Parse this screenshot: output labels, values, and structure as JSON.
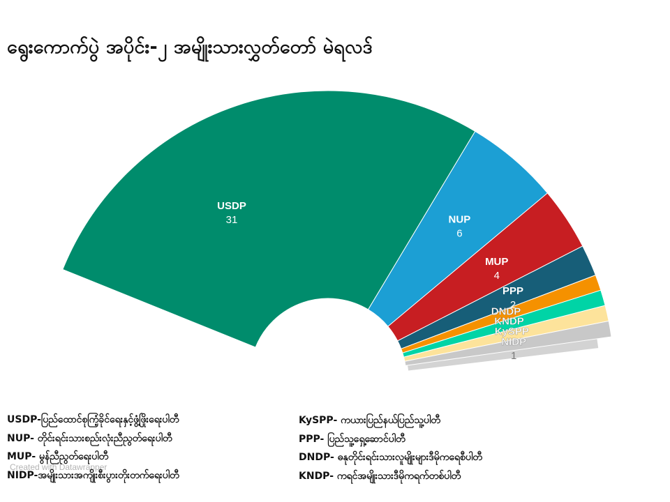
{
  "title": "ရွေးကောက်ပွဲ အပိုင်း-၂ အမျိုးသားလွှတ်တော် မဲရလဒ်",
  "credit": "Created with Datawrapper",
  "chart_data": {
    "type": "pie",
    "subtype": "semicircle-donut",
    "title": "ရွေးကောက်ပွဲ အပိုင်း-၂ အမျိုးသားလွှတ်တော် မဲရလဒ်",
    "categories": [
      "USDP",
      "NUP",
      "MUP",
      "PPP",
      "DNDP",
      "KNDP",
      "KySPP",
      "NIDP"
    ],
    "values": [
      31,
      6,
      4,
      2,
      1,
      1,
      1,
      1
    ],
    "value_labels": [
      "31",
      "6",
      "4",
      "2",
      "",
      "",
      "",
      "1"
    ],
    "colors": [
      "#008c6c",
      "#1c9fd4",
      "#c71e22",
      "#175e78",
      "#f59100",
      "#00d4a6",
      "#fde39b",
      "#c8c8c8"
    ],
    "shadow_color": "#d3d3d3"
  },
  "legend": {
    "left": [
      "USDP-ပြည်ထောင်စုကြံ့ခိုင်ရေးနှင့်ဖွံ့ဖြိုးရေးပါတီ",
      "NUP- တိုင်းရင်းသားစည်းလုံးညီညွတ်ရေးပါတီ",
      "MUP- မွန်ညီညွတ်ရေးပါတီ",
      "NIDP-အမျိုးသားအကျိုးစီးပွားတိုးတက်ရေးပါတီ"
    ],
    "right": [
      "KySPP- ကယားပြည်နယ်ပြည်သူ့ပါတီ",
      "PPP- ပြည်သူ့ရှေ့ဆောင်ပါတီ",
      "DNDP- ဓနုတိုင်းရင်းသားလူမျိုးများဒီမိုကရေစီပါတီ",
      "KNDP- ကရင်အမျိုးသားဒီမိုကရက်တစ်ပါတီ"
    ]
  }
}
